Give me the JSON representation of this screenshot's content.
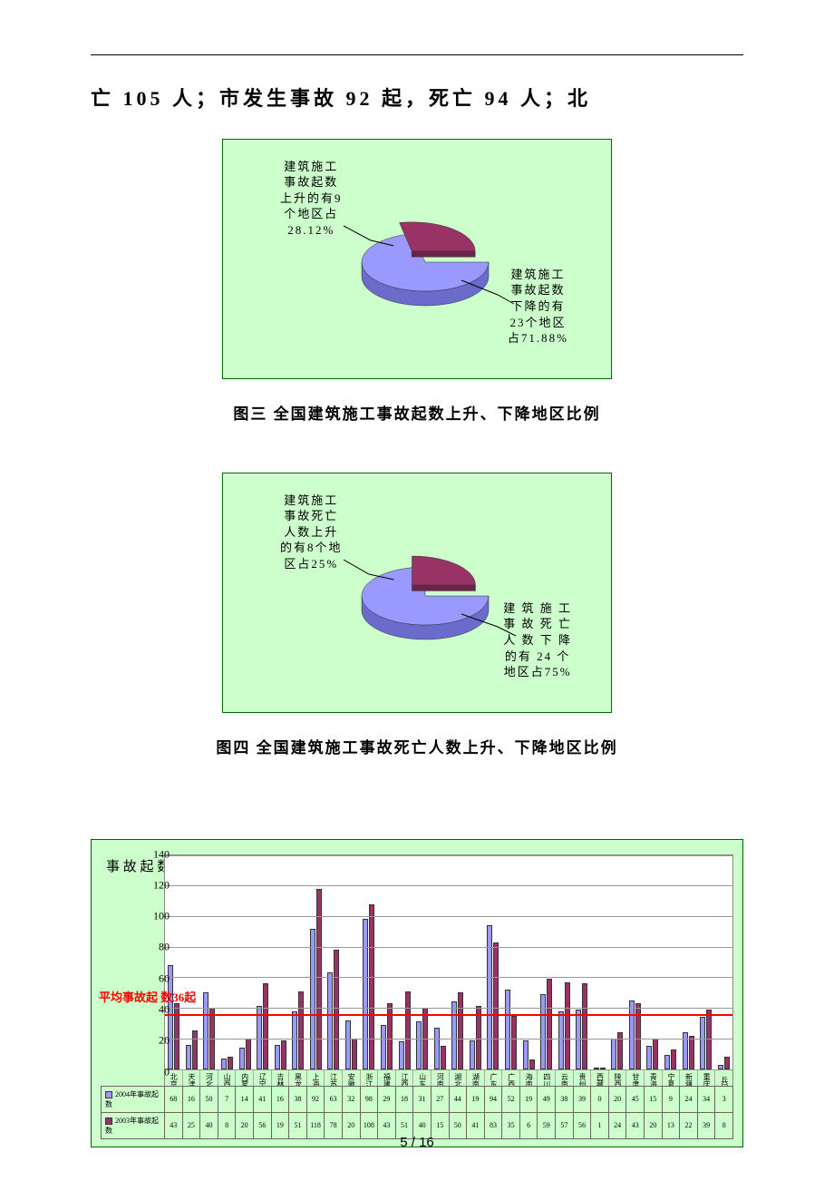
{
  "body_text": "亡 105 人；市发生事故 92 起，死亡 94 人；北",
  "page_number": "5  /  16",
  "pie3": {
    "caption": "图三  全国建筑施工事故起数上升、下降地区比例",
    "background_color": "#ccffcc",
    "border_color": "#006600",
    "slice_small": {
      "label": "建筑施工\n事故起数\n上升的有9\n个地区占\n28.12%",
      "percent": 28.12,
      "color": "#993366",
      "side_color": "#6b2447"
    },
    "slice_large": {
      "label": "建筑施工\n事故起数\n下降的有\n23个地区\n占71.88%",
      "percent": 71.88,
      "color": "#9999ff",
      "side_color": "#6b6bcc"
    }
  },
  "pie4": {
    "caption": "图四  全国建筑施工事故死亡人数上升、下降地区比例",
    "background_color": "#ccffcc",
    "border_color": "#006600",
    "slice_small": {
      "label": "建筑施工\n事故死亡\n人数上升\n的有8个地\n区占25%",
      "percent": 25,
      "color": "#993366",
      "side_color": "#6b2447"
    },
    "slice_large": {
      "label": "建 筑 施 工\n事 故 死 亡\n人 数 下 降\n的有 24 个\n地区占75%",
      "percent": 75,
      "color": "#9999ff",
      "side_color": "#6b6bcc"
    }
  },
  "bar": {
    "ylabel": "事\n故\n起\n数",
    "ylim": [
      0,
      140
    ],
    "ytick_step": 20,
    "grid_color": "#999999",
    "plot_bg": "#ffffff",
    "panel_bg": "#ccffcc",
    "ref_line_value": 36,
    "ref_line_color": "#ff0000",
    "ref_label": "平均事故起\n数36起",
    "series_a": {
      "name": "2004年事故起数",
      "color": "#9999ff"
    },
    "series_b": {
      "name": "2003年事故起数",
      "color": "#993366"
    },
    "categories": [
      "北京市",
      "天津市",
      "河北省",
      "山西省",
      "内蒙区",
      "辽宁省",
      "吉林省",
      "黑龙江",
      "上海市",
      "江苏省",
      "安徽省",
      "浙江省",
      "福建省",
      "江西省",
      "山东省",
      "河南省",
      "湖北省",
      "湖南省",
      "广东省",
      "广西区",
      "海南省",
      "四川省",
      "云南省",
      "贵州省",
      "西藏区",
      "陕西省",
      "甘肃省",
      "青海省",
      "宁夏区",
      "新疆区",
      "重庆市",
      "兵团"
    ],
    "values_a": [
      68,
      16,
      50,
      7,
      14,
      41,
      16,
      38,
      92,
      63,
      32,
      98,
      29,
      18,
      31,
      27,
      44,
      19,
      94,
      52,
      19,
      49,
      38,
      39,
      0,
      20,
      45,
      15,
      9,
      24,
      34,
      3
    ],
    "values_b": [
      43,
      25,
      40,
      8,
      20,
      56,
      19,
      51,
      118,
      78,
      20,
      108,
      43,
      51,
      40,
      15,
      50,
      41,
      83,
      35,
      6,
      59,
      57,
      56,
      1,
      24,
      43,
      20,
      13,
      22,
      39,
      8
    ]
  }
}
